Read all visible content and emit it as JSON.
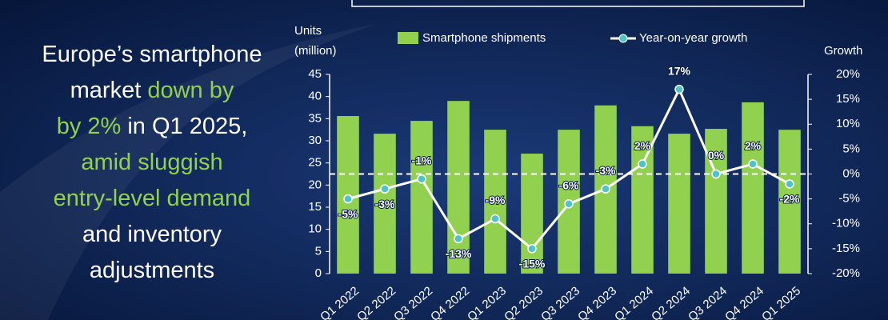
{
  "headline": [
    [
      {
        "text": "Europe’s smartphone",
        "color": "#ffffff"
      }
    ],
    [
      {
        "text": "market ",
        "color": "#ffffff"
      },
      {
        "text": "down by",
        "color": "#92d050"
      }
    ],
    [
      {
        "text": "by 2%",
        "color": "#92d050"
      },
      {
        "text": " in Q1 2025,",
        "color": "#ffffff"
      }
    ],
    [
      {
        "text": "amid sluggish",
        "color": "#92d050"
      }
    ],
    [
      {
        "text": "entry-level demand",
        "color": "#92d050"
      }
    ],
    [
      {
        "text": "and inventory",
        "color": "#ffffff"
      }
    ],
    [
      {
        "text": "adjustments",
        "color": "#ffffff"
      }
    ]
  ],
  "chart_data": {
    "type": "bar-line",
    "y_label": "Units (million)",
    "y2_label": "Growth",
    "categories": [
      "Q1 2022",
      "Q2 2022",
      "Q3 2022",
      "Q4 2022",
      "Q1 2023",
      "Q2 2023",
      "Q3 2023",
      "Q4 2023",
      "Q1 2024",
      "Q2 2024",
      "Q3 2024",
      "Q4 2024",
      "Q1 2025"
    ],
    "series": [
      {
        "name": "Smartphone shipments",
        "color": "#92d050",
        "type": "bar",
        "values": [
          35.6,
          31.6,
          34.5,
          39,
          32.5,
          27.1,
          32.5,
          38,
          33.3,
          31.6,
          32.7,
          38.7,
          32.5
        ]
      },
      {
        "name": "Year-on-year growth",
        "color": "#ffffff",
        "marker_color": "#4fc3c8",
        "type": "line",
        "axis": "y2",
        "values": [
          -5,
          -3,
          -1,
          -13,
          -9,
          -15,
          -6,
          -3,
          2,
          17,
          0,
          2,
          -2
        ],
        "value_labels": [
          "-5%",
          "-3%",
          "-1%",
          "-13%",
          "-9%",
          "-15%",
          "-6%",
          "-3%",
          "2%",
          "17%",
          "0%",
          "2%",
          "-2%"
        ]
      }
    ],
    "ylim": [
      0,
      45
    ],
    "yticks": [
      0,
      5,
      10,
      15,
      20,
      25,
      30,
      35,
      40,
      45
    ],
    "y2lim": [
      -20,
      20
    ],
    "y2ticks": [
      {
        "value": -20,
        "label": "-20%"
      },
      {
        "value": -15,
        "label": "-15%"
      },
      {
        "value": -10,
        "label": "-10%"
      },
      {
        "value": -5,
        "label": "-5%"
      },
      {
        "value": 0,
        "label": "0%"
      },
      {
        "value": 5,
        "label": "5%"
      },
      {
        "value": 10,
        "label": "10%"
      },
      {
        "value": 15,
        "label": "15%"
      },
      {
        "value": 20,
        "label": "20%"
      }
    ],
    "zero_line": true,
    "legend": "top"
  }
}
